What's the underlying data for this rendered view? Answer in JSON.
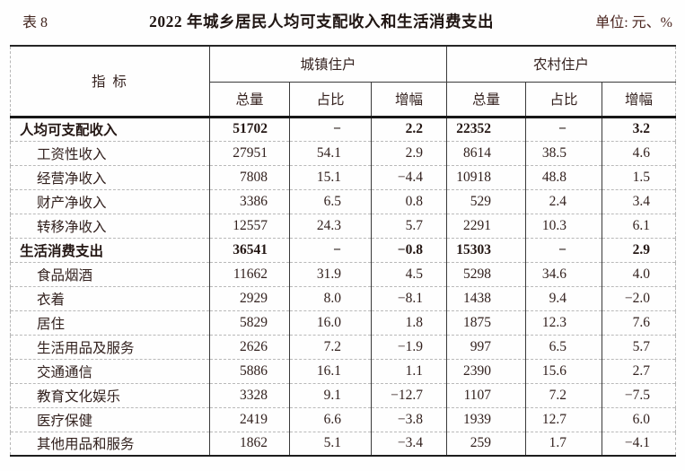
{
  "header": {
    "table_label": "表 8",
    "title": "2022 年城乡居民人均可支配收入和生活消费支出",
    "unit": "单位: 元、%"
  },
  "table": {
    "indicator_header": "指  标",
    "groups": [
      {
        "label": "城镇住户"
      },
      {
        "label": "农村住户"
      }
    ],
    "sub_headers": [
      "总量",
      "占比",
      "增幅"
    ],
    "rows": [
      {
        "label": "人均可支配收入",
        "bold": true,
        "indent": false,
        "values": [
          "51702",
          "−",
          "2.2",
          "22352",
          "−",
          "3.2"
        ]
      },
      {
        "label": "工资性收入",
        "bold": false,
        "indent": true,
        "values": [
          "27951",
          "54.1",
          "2.9",
          "8614",
          "38.5",
          "4.6"
        ]
      },
      {
        "label": "经营净收入",
        "bold": false,
        "indent": true,
        "values": [
          "7808",
          "15.1",
          "−4.4",
          "10918",
          "48.8",
          "1.5"
        ]
      },
      {
        "label": "财产净收入",
        "bold": false,
        "indent": true,
        "values": [
          "3386",
          "6.5",
          "0.8",
          "529",
          "2.4",
          "3.4"
        ]
      },
      {
        "label": "转移净收入",
        "bold": false,
        "indent": true,
        "values": [
          "12557",
          "24.3",
          "5.7",
          "2291",
          "10.3",
          "6.1"
        ]
      },
      {
        "label": "生活消费支出",
        "bold": true,
        "indent": false,
        "values": [
          "36541",
          "−",
          "−0.8",
          "15303",
          "−",
          "2.9"
        ]
      },
      {
        "label": "食品烟酒",
        "bold": false,
        "indent": true,
        "values": [
          "11662",
          "31.9",
          "4.5",
          "5298",
          "34.6",
          "4.0"
        ]
      },
      {
        "label": "衣着",
        "bold": false,
        "indent": true,
        "values": [
          "2929",
          "8.0",
          "−8.1",
          "1438",
          "9.4",
          "−2.0"
        ]
      },
      {
        "label": "居住",
        "bold": false,
        "indent": true,
        "values": [
          "5829",
          "16.0",
          "1.8",
          "1875",
          "12.3",
          "7.6"
        ]
      },
      {
        "label": "生活用品及服务",
        "bold": false,
        "indent": true,
        "values": [
          "2626",
          "7.2",
          "−1.9",
          "997",
          "6.5",
          "5.7"
        ]
      },
      {
        "label": "交通通信",
        "bold": false,
        "indent": true,
        "values": [
          "5886",
          "16.1",
          "1.1",
          "2390",
          "15.6",
          "2.7"
        ]
      },
      {
        "label": "教育文化娱乐",
        "bold": false,
        "indent": true,
        "values": [
          "3328",
          "9.1",
          "−12.7",
          "1107",
          "7.2",
          "−7.5"
        ]
      },
      {
        "label": "医疗保健",
        "bold": false,
        "indent": true,
        "values": [
          "2419",
          "6.6",
          "−3.8",
          "1939",
          "12.7",
          "6.0"
        ]
      },
      {
        "label": "其他用品和服务",
        "bold": false,
        "indent": true,
        "values": [
          "1862",
          "5.1",
          "−3.4",
          "259",
          "1.7",
          "−4.1"
        ]
      }
    ]
  }
}
